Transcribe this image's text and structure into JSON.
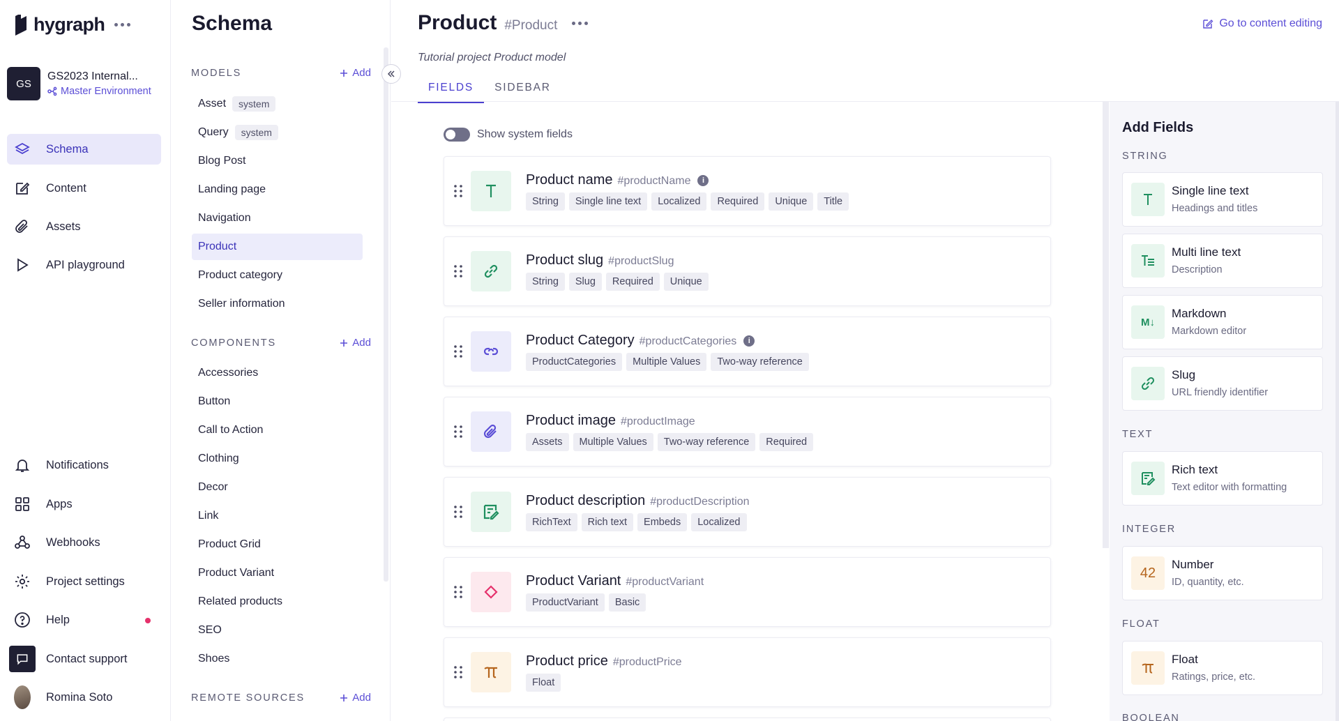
{
  "brand": {
    "name": "hygraph"
  },
  "project": {
    "initials": "GS",
    "name": "GS2023 Internal...",
    "environment": "Master Environment"
  },
  "nav": {
    "items": [
      {
        "label": "Schema",
        "icon": "layers-icon"
      },
      {
        "label": "Content",
        "icon": "edit-icon"
      },
      {
        "label": "Assets",
        "icon": "paperclip-icon"
      },
      {
        "label": "API playground",
        "icon": "play-icon"
      }
    ],
    "bottom": [
      {
        "label": "Notifications",
        "icon": "bell-icon"
      },
      {
        "label": "Apps",
        "icon": "grid-icon"
      },
      {
        "label": "Webhooks",
        "icon": "webhook-icon"
      },
      {
        "label": "Project settings",
        "icon": "gear-icon"
      },
      {
        "label": "Help",
        "icon": "help-icon"
      },
      {
        "label": "Contact support",
        "icon": "chat-icon"
      },
      {
        "label": "Romina Soto",
        "icon": "user-avatar"
      }
    ]
  },
  "schema": {
    "title": "Schema",
    "add_label": "Add",
    "models_header": "MODELS",
    "models": [
      {
        "label": "Asset",
        "tag": "system"
      },
      {
        "label": "Query",
        "tag": "system"
      },
      {
        "label": "Blog Post"
      },
      {
        "label": "Landing page"
      },
      {
        "label": "Navigation"
      },
      {
        "label": "Product"
      },
      {
        "label": "Product category"
      },
      {
        "label": "Seller information"
      }
    ],
    "components_header": "COMPONENTS",
    "components": [
      "Accessories",
      "Button",
      "Call to Action",
      "Clothing",
      "Decor",
      "Link",
      "Product Grid",
      "Product Variant",
      "Related products",
      "SEO",
      "Shoes"
    ],
    "remote_header": "REMOTE SOURCES"
  },
  "main": {
    "title": "Product",
    "api_id": "#Product",
    "goto_label": "Go to content editing",
    "description": "Tutorial project Product model",
    "tabs": [
      "FIELDS",
      "SIDEBAR"
    ],
    "toggle_label": "Show system fields",
    "fields": [
      {
        "name": "Product name",
        "api": "#productName",
        "info": true,
        "icon": "text-icon",
        "tags": [
          "String",
          "Single line text",
          "Localized",
          "Required",
          "Unique",
          "Title"
        ]
      },
      {
        "name": "Product slug",
        "api": "#productSlug",
        "info": false,
        "icon": "link-icon",
        "tags": [
          "String",
          "Slug",
          "Required",
          "Unique"
        ]
      },
      {
        "name": "Product Category",
        "api": "#productCategories",
        "info": true,
        "icon": "reference-icon",
        "tags": [
          "ProductCategories",
          "Multiple Values",
          "Two-way reference"
        ]
      },
      {
        "name": "Product image",
        "api": "#productImage",
        "info": false,
        "icon": "paperclip-icon",
        "tags": [
          "Assets",
          "Multiple Values",
          "Two-way reference",
          "Required"
        ]
      },
      {
        "name": "Product description",
        "api": "#productDescription",
        "info": false,
        "icon": "richtext-icon",
        "tags": [
          "RichText",
          "Rich text",
          "Embeds",
          "Localized"
        ]
      },
      {
        "name": "Product Variant",
        "api": "#productVariant",
        "info": false,
        "icon": "diamond-icon",
        "tags": [
          "ProductVariant",
          "Basic"
        ]
      },
      {
        "name": "Product price",
        "api": "#productPrice",
        "info": false,
        "icon": "pi-icon",
        "tags": [
          "Float"
        ]
      }
    ]
  },
  "add_fields": {
    "title": "Add Fields",
    "categories": [
      {
        "label": "STRING",
        "items": [
          {
            "name": "Single line text",
            "sub": "Headings and titles",
            "icon": "text-icon"
          },
          {
            "name": "Multi line text",
            "sub": "Description",
            "icon": "multiline-icon"
          },
          {
            "name": "Markdown",
            "sub": "Markdown editor",
            "icon": "markdown-icon",
            "glyph": "M↓"
          },
          {
            "name": "Slug",
            "sub": "URL friendly identifier",
            "icon": "link-icon"
          }
        ]
      },
      {
        "label": "TEXT",
        "items": [
          {
            "name": "Rich text",
            "sub": "Text editor with formatting",
            "icon": "richtext-icon"
          }
        ]
      },
      {
        "label": "INTEGER",
        "items": [
          {
            "name": "Number",
            "sub": "ID, quantity, etc.",
            "icon": "number-icon",
            "glyph": "42"
          }
        ]
      },
      {
        "label": "FLOAT",
        "items": [
          {
            "name": "Float",
            "sub": "Ratings, price, etc.",
            "icon": "pi-icon"
          }
        ]
      },
      {
        "label": "BOOLEAN",
        "items": []
      }
    ]
  },
  "colors": {
    "accent": "#5b4ed6",
    "green": "#1f8f5f",
    "purple": "#5b4ed6",
    "pink": "#e5316b",
    "orange": "#b5651d"
  }
}
